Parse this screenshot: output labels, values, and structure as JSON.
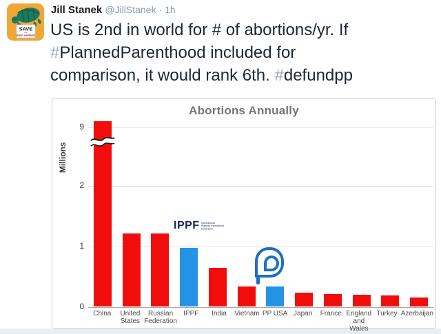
{
  "page": {
    "background": "#e9eff7",
    "card_background": "#ffffff"
  },
  "tweet": {
    "author": "Jill Stanek",
    "handle": "@JillStanek",
    "separator": "·",
    "time": "1h",
    "avatar_sign": {
      "line1": "SAVE",
      "line2": "the",
      "line3": "BABY HUMANS"
    },
    "lines": [
      [
        {
          "type": "text",
          "text": "US is 2nd in world for # of abortions/yr. If"
        }
      ],
      [
        {
          "type": "hashtag",
          "text": "PlannedParenthood"
        },
        {
          "type": "text",
          "text": " included for"
        }
      ],
      [
        {
          "type": "text",
          "text": "comparison, it would rank 6th. "
        },
        {
          "type": "hashtag",
          "text": "defundpp"
        }
      ]
    ]
  },
  "chart_data": {
    "type": "bar",
    "title": "Abortions Annually",
    "xlabel": "",
    "ylabel": "Millions",
    "categories": [
      "China",
      "United States",
      "Russian Federation",
      "IPPF",
      "India",
      "Vietnam",
      "PP USA",
      "Japan",
      "France",
      "England and Wales",
      "Turkey",
      "Azerbaijan"
    ],
    "values": [
      9.2,
      1.21,
      1.21,
      0.97,
      0.64,
      0.33,
      0.33,
      0.23,
      0.21,
      0.19,
      0.18,
      0.15
    ],
    "bar_colors": [
      "red",
      "red",
      "red",
      "blue",
      "red",
      "red",
      "blue",
      "red",
      "red",
      "red",
      "red",
      "red"
    ],
    "label_lines": [
      [
        "China"
      ],
      [
        "United",
        "States"
      ],
      [
        "Russian",
        "Federation"
      ],
      [
        "IPPF"
      ],
      [
        "India"
      ],
      [
        "Vietnam"
      ],
      [
        "PP USA"
      ],
      [
        "Japan"
      ],
      [
        "France"
      ],
      [
        "England",
        "and Wales"
      ],
      [
        "Turkey"
      ],
      [
        "Azerbaijan"
      ]
    ],
    "yticks": [
      0,
      1,
      2,
      9
    ],
    "ylim": [
      0,
      9.4
    ],
    "grid": true,
    "legend": false,
    "axis_break": {
      "bar": "China",
      "between": [
        2,
        9
      ]
    },
    "colors": {
      "red": "#f20d0d",
      "blue": "#2593e5",
      "pp_logo_blue": "#1d6fc0",
      "ippf_navy": "#16255e"
    },
    "annotations": {
      "ippf_wordmark": "IPPF",
      "ippf_subtext": [
        "International",
        "Planned Parenthood",
        "Federation"
      ],
      "pp_logo": "planned-parenthood-logo"
    }
  }
}
